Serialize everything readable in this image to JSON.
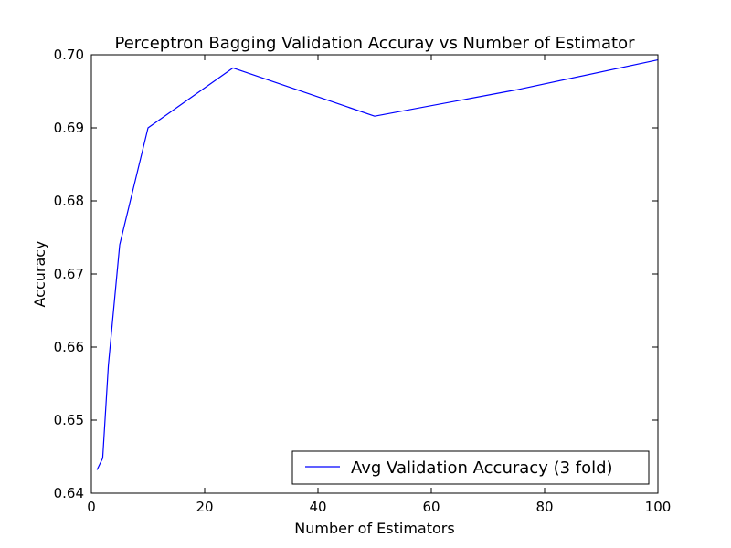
{
  "chart_data": {
    "type": "line",
    "title": "Perceptron Bagging Validation Accuray vs Number of Estimator",
    "xlabel": "Number of Estimators",
    "ylabel": "Accuracy",
    "xlim": [
      0,
      100
    ],
    "ylim": [
      0.64,
      0.7
    ],
    "x_ticks": [
      "0",
      "20",
      "40",
      "60",
      "80",
      "100"
    ],
    "y_ticks": [
      "0.64",
      "0.65",
      "0.66",
      "0.67",
      "0.68",
      "0.69",
      "0.70"
    ],
    "grid": false,
    "legend_position": "lower-right",
    "series": [
      {
        "name": "Avg Validation Accuracy (3 fold)",
        "color": "#0000ff",
        "x": [
          1,
          2,
          3,
          5,
          10,
          25,
          50,
          75,
          100
        ],
        "y": [
          0.6432,
          0.6448,
          0.6575,
          0.674,
          0.69,
          0.6982,
          0.6916,
          0.6952,
          0.6993
        ]
      }
    ]
  }
}
